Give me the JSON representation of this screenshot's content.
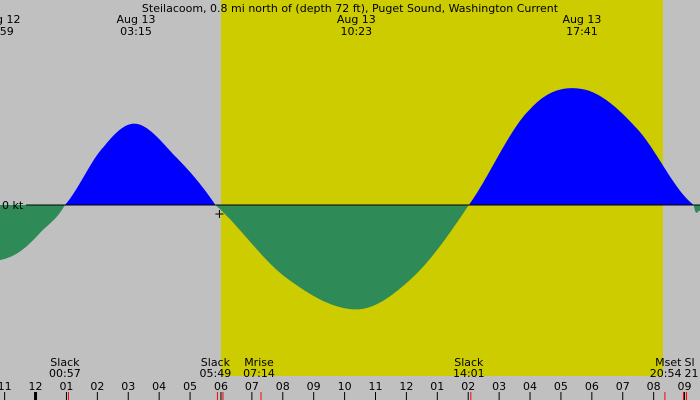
{
  "title": "Steilacoom, 0.8 mi north of (depth 72 ft), Puget Sound, Washington Current",
  "colors": {
    "background": "#c0c0c0",
    "daylight": "#cccc00",
    "flood": "#0000ff",
    "ebb": "#2e8b57",
    "axis": "#000000",
    "sun_tick": "#ff0000"
  },
  "chart_data": {
    "type": "area",
    "x_unit": "hour of day (Aug 12 - Aug 13)",
    "y_unit": "kt",
    "zero_label": "0 kt",
    "x_range": [
      -1.15,
      21.5
    ],
    "daylight": {
      "start": 6.0,
      "end": 20.3
    },
    "peaks": [
      {
        "date_label": "g 12",
        "time_label": ":59",
        "x": -1.0
      },
      {
        "date_label": "Aug 13",
        "time_label": "03:15",
        "x": 3.25,
        "value": 1.4
      },
      {
        "date_label": "Aug 13",
        "time_label": "10:23",
        "x": 10.38,
        "value": -1.8
      },
      {
        "date_label": "Aug 13",
        "time_label": "17:41",
        "x": 17.68,
        "value": 2.0
      }
    ],
    "curve": [
      {
        "x": -1.15,
        "y": -0.95
      },
      {
        "x": -0.5,
        "y": -0.8
      },
      {
        "x": 0.2,
        "y": -0.45
      },
      {
        "x": 0.95,
        "y": 0.0
      },
      {
        "x": 2.2,
        "y": 1.0
      },
      {
        "x": 3.25,
        "y": 1.4
      },
      {
        "x": 4.5,
        "y": 0.85
      },
      {
        "x": 5.82,
        "y": 0.0
      },
      {
        "x": 8.1,
        "y": -1.25
      },
      {
        "x": 10.38,
        "y": -1.8
      },
      {
        "x": 12.2,
        "y": -1.25
      },
      {
        "x": 14.02,
        "y": 0.0
      },
      {
        "x": 16.0,
        "y": 1.65
      },
      {
        "x": 17.68,
        "y": 2.0
      },
      {
        "x": 19.4,
        "y": 1.35
      },
      {
        "x": 21.3,
        "y": 0.0
      },
      {
        "x": 21.5,
        "y": -0.1
      }
    ],
    "hour_ticks": [
      {
        "label": "11",
        "x": -1.0
      },
      {
        "label": "12",
        "x": 0.0
      },
      {
        "label": "01",
        "x": 1.0
      },
      {
        "label": "02",
        "x": 2.0
      },
      {
        "label": "03",
        "x": 3.0
      },
      {
        "label": "04",
        "x": 4.0
      },
      {
        "label": "05",
        "x": 5.0
      },
      {
        "label": "06",
        "x": 6.0
      },
      {
        "label": "07",
        "x": 7.0
      },
      {
        "label": "08",
        "x": 8.0
      },
      {
        "label": "09",
        "x": 9.0
      },
      {
        "label": "10",
        "x": 10.0
      },
      {
        "label": "11",
        "x": 11.0
      },
      {
        "label": "12",
        "x": 12.0
      },
      {
        "label": "01",
        "x": 13.0
      },
      {
        "label": "02",
        "x": 14.0
      },
      {
        "label": "03",
        "x": 15.0
      },
      {
        "label": "04",
        "x": 16.0
      },
      {
        "label": "05",
        "x": 17.0
      },
      {
        "label": "06",
        "x": 18.0
      },
      {
        "label": "07",
        "x": 19.0
      },
      {
        "label": "08",
        "x": 20.0
      },
      {
        "label": "09",
        "x": 21.0
      }
    ],
    "events": [
      {
        "name": "Slack",
        "time": "00:57",
        "x": 0.95,
        "anchor": "middle"
      },
      {
        "name": "Slack",
        "time": "05:49",
        "x": 5.82,
        "anchor": "middle"
      },
      {
        "name": "Mrise",
        "time": "07:14",
        "x": 7.23,
        "anchor": "middle"
      },
      {
        "name": "Slack",
        "time": "14:01",
        "x": 14.02,
        "anchor": "middle"
      },
      {
        "name": "Mset",
        "time": "20:54",
        "x": 20.9,
        "anchor": "end"
      },
      {
        "name": "Sl",
        "time": "21",
        "x": 21.0,
        "anchor": "start"
      }
    ],
    "red_ticks": [
      1.0,
      5.82,
      6.0,
      7.23,
      14.02,
      20.3,
      20.9,
      21.0
    ]
  }
}
